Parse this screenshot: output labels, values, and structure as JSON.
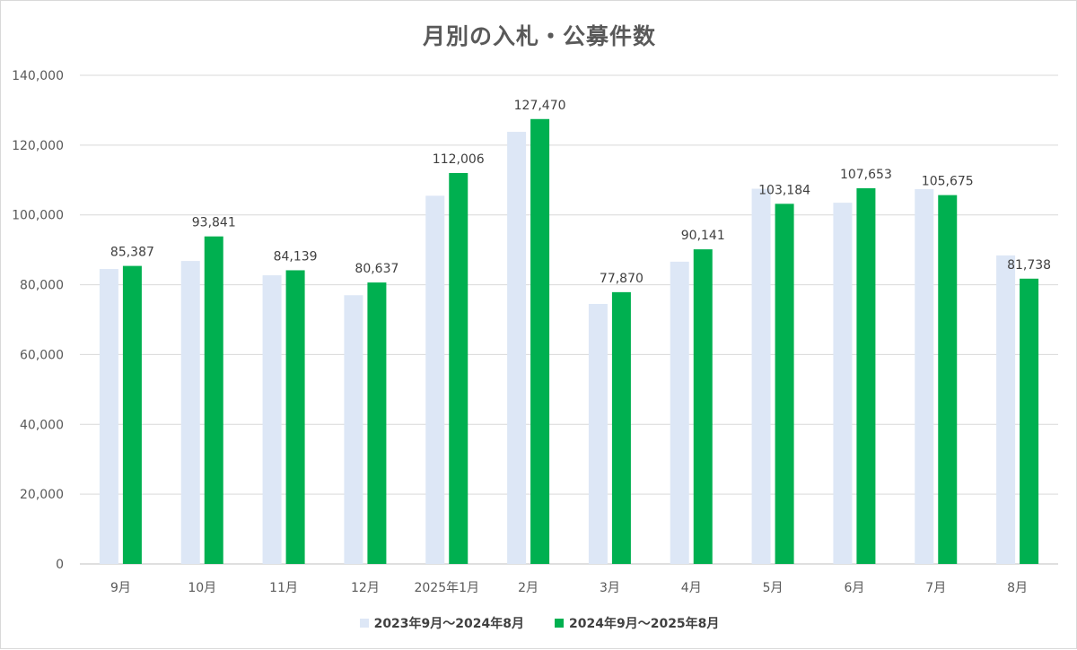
{
  "chart_data": {
    "type": "bar",
    "title": "月別の入札・公募件数",
    "categories": [
      "9月",
      "10月",
      "11月",
      "12月",
      "2025年1月",
      "2月",
      "3月",
      "4月",
      "5月",
      "6月",
      "7月",
      "8月"
    ],
    "series": [
      {
        "name": "2023年9月～2024年8月",
        "color": "#dde7f6",
        "values": [
          84500,
          86800,
          82700,
          77000,
          105500,
          123800,
          74500,
          86600,
          107500,
          103500,
          107400,
          88400
        ],
        "show_labels": false
      },
      {
        "name": "2024年9月～2025年8月",
        "color": "#00b050",
        "values": [
          85387,
          93841,
          84139,
          80637,
          112006,
          127470,
          77870,
          90141,
          103184,
          107653,
          105675,
          81738
        ],
        "value_labels": [
          "85,387",
          "93,841",
          "84,139",
          "80,637",
          "112,006",
          "127,470",
          "77,870",
          "90,141",
          "103,184",
          "107,653",
          "105,675",
          "81,738"
        ],
        "show_labels": true
      }
    ],
    "xlabel": "",
    "ylabel": "",
    "ylim": [
      0,
      140000
    ],
    "yticks": [
      0,
      20000,
      40000,
      60000,
      80000,
      100000,
      120000,
      140000
    ],
    "ytick_labels": [
      "0",
      "20,000",
      "40,000",
      "60,000",
      "80,000",
      "100,000",
      "120,000",
      "140,000"
    ],
    "grid": true,
    "legend_position": "bottom",
    "colors": {
      "grid": "#d9d9d9",
      "axis": "#bfbfbf",
      "tick_text": "#595959",
      "label_text": "#404040"
    }
  }
}
